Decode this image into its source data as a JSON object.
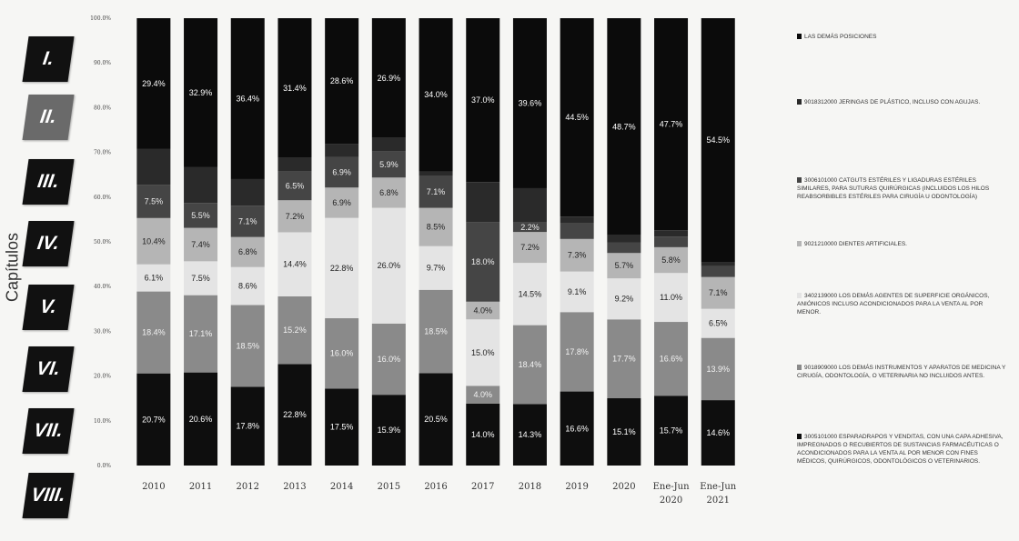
{
  "side_label": "Capítulos",
  "chapters": [
    {
      "label": "I.",
      "color": "#111111"
    },
    {
      "label": "II.",
      "color": "#6a6a6a"
    },
    {
      "label": "III.",
      "color": "#111111"
    },
    {
      "label": "IV.",
      "color": "#111111"
    },
    {
      "label": "V.",
      "color": "#111111"
    },
    {
      "label": "VI.",
      "color": "#111111"
    },
    {
      "label": "VII.",
      "color": "#111111"
    },
    {
      "label": "VIII.",
      "color": "#111111"
    }
  ],
  "legend": [
    {
      "text": "LAS DEMÁS POSICIONES",
      "color": "#0b0b0b"
    },
    {
      "text": "9018312000 JERINGAS DE PLÁSTICO, INCLUSO CON AGUJAS.",
      "color": "#2a2a2a"
    },
    {
      "text": "3006101000 CATGUTS ESTÉRILES Y LIGADURAS ESTÉRILES SIMILARES, PARA SUTURAS QUIRÚRGICAS (INCLUIDOS LOS HILOS REABSORBIBLES ESTÉRILES PARA CIRUGÍA U ODONTOLOGÍA)",
      "color": "#454545"
    },
    {
      "text": "9021210000 DIENTES ARTIFICIALES.",
      "color": "#b5b5b5"
    },
    {
      "text": "3402139000 LOS DEMÁS AGENTES DE SUPERFICIE ORGÁNICOS, ANIÓNICOS INCLUSO ACONDICIONADOS PARA LA VENTA AL POR MENOR.",
      "color": "#e4e4e4"
    },
    {
      "text": "9018909000 LOS DEMÁS INSTRUMENTOS Y APARATOS DE MEDICINA Y CIRUGÍA, ODONTOLOGÍA, O VETERINARIA NO INCLUIDOS ANTES.",
      "color": "#8a8a8a"
    },
    {
      "text": "3005101000 ESPARADRAPOS Y VENDITAS, CON UNA CAPA ADHESIVA, IMPREGNADOS O RECUBIERTOS DE SUSTANCIAS FARMACÉUTICAS O ACONDICIONADOS PARA LA VENTA AL POR MENOR CON FINES MÉDICOS, QUIRÚRGICOS, ODONTOLÓGICOS O VETERINARIOS.",
      "color": "#0e0e0e"
    }
  ],
  "chart_data": {
    "type": "bar",
    "stacked": true,
    "categories": [
      "2010",
      "2011",
      "2012",
      "2013",
      "2014",
      "2015",
      "2016",
      "2017",
      "2018",
      "2019",
      "2020",
      "Ene-Jun 2020",
      "Ene-Jun 2021"
    ],
    "ylim": [
      0,
      100
    ],
    "yticks": [
      "0.0%",
      "10.0%",
      "20.0%",
      "30.0%",
      "40.0%",
      "50.0%",
      "60.0%",
      "70.0%",
      "80.0%",
      "90.0%",
      "100.0%"
    ],
    "series": [
      {
        "name": "3005101000",
        "color": "#0e0e0e",
        "text_color": "#ffffff",
        "values": [
          20.7,
          20.6,
          17.8,
          22.8,
          17.5,
          15.9,
          20.5,
          14.0,
          14.3,
          16.6,
          15.1,
          15.7,
          14.6
        ],
        "labels": [
          "20.7%",
          "20.6%",
          "17.8%",
          "22.8%",
          "17.5%",
          "15.9%",
          "20.5%",
          "14.0%",
          "14.3%",
          "16.6%",
          "15.1%",
          "15.7%",
          "14.6%"
        ]
      },
      {
        "name": "9018909000",
        "color": "#8a8a8a",
        "text_color": "#f2f2f2",
        "values": [
          18.4,
          17.1,
          18.5,
          15.2,
          16.0,
          16.0,
          18.5,
          4.0,
          18.4,
          17.8,
          17.7,
          16.6,
          13.9
        ],
        "labels": [
          "18.4%",
          "17.1%",
          "18.5%",
          "15.2%",
          "16.0%",
          "16.0%",
          "18.5%",
          "4.0%",
          "18.4%",
          "17.8%",
          "17.7%",
          "16.6%",
          "13.9%"
        ]
      },
      {
        "name": "3402139000",
        "color": "#e4e4e4",
        "text_color": "#222222",
        "values": [
          6.1,
          7.5,
          8.6,
          14.4,
          22.8,
          26.0,
          9.7,
          15.0,
          14.5,
          9.1,
          9.2,
          11.0,
          6.5
        ],
        "labels": [
          "6.1%",
          "7.5%",
          "8.6%",
          "14.4%",
          "22.8%",
          "26.0%",
          "9.7%",
          "15.0%",
          "14.5%",
          "9.1%",
          "9.2%",
          "11.0%",
          "6.5%"
        ]
      },
      {
        "name": "9021210000",
        "color": "#b5b5b5",
        "text_color": "#222222",
        "values": [
          10.4,
          7.4,
          6.8,
          7.2,
          6.9,
          6.8,
          8.5,
          4.0,
          7.2,
          7.3,
          5.7,
          5.8,
          7.1
        ],
        "labels": [
          "10.4%",
          "7.4%",
          "6.8%",
          "7.2%",
          "6.9%",
          "6.8%",
          "8.5%",
          "4.0%",
          "7.2%",
          "7.3%",
          "5.7%",
          "5.8%",
          "7.1%"
        ]
      },
      {
        "name": "3006101000",
        "color": "#454545",
        "text_color": "#eeeeee",
        "values": [
          7.5,
          5.5,
          7.1,
          6.5,
          6.9,
          5.9,
          7.1,
          18.0,
          2.2,
          3.5,
          2.4,
          2.4,
          2.4
        ],
        "labels": [
          "7.5%",
          "5.5%",
          "7.1%",
          "6.5%",
          "6.9%",
          "5.9%",
          "7.1%",
          "18.0%",
          "2.2%",
          "",
          "",
          "",
          ""
        ]
      },
      {
        "name": "9018312000",
        "color": "#2a2a2a",
        "text_color": "#ffffff",
        "values": [
          8.0,
          8.0,
          6.0,
          3.0,
          3.0,
          3.0,
          1.0,
          9.0,
          8.0,
          1.5,
          1.6,
          1.4,
          0.9
        ],
        "labels": [
          "",
          "",
          "",
          "",
          "",
          "",
          "",
          "",
          "",
          "",
          "",
          "",
          ""
        ]
      },
      {
        "name": "LAS DEMÁS POSICIONES",
        "color": "#0b0b0b",
        "text_color": "#ffffff",
        "values": [
          29.4,
          32.9,
          36.4,
          31.4,
          28.6,
          26.9,
          34.0,
          37.0,
          39.6,
          44.5,
          48.7,
          47.7,
          54.5
        ],
        "labels": [
          "29.4%",
          "32.9%",
          "36.4%",
          "31.4%",
          "28.6%",
          "26.9%",
          "34.0%",
          "37.0%",
          "39.6%",
          "44.5%",
          "48.7%",
          "47.7%",
          "54.5%"
        ]
      }
    ]
  }
}
